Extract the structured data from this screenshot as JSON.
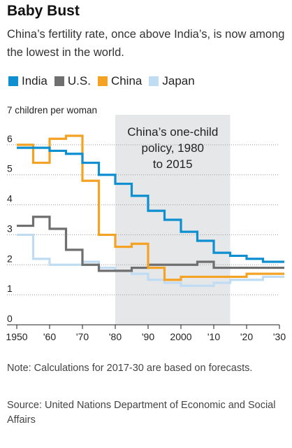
{
  "header": {
    "title": "Baby Bust",
    "subtitle": "China’s fertility rate, once above India’s, is now among the lowest in the world."
  },
  "notes": {
    "note": "Note: Calculations for 2017-30 are based on forecasts.",
    "source": "Source: United Nations Department of Economic and Social Affairs"
  },
  "chart_data": {
    "type": "line",
    "step": true,
    "ylabel": "7 children per woman",
    "ylim": [
      0,
      7
    ],
    "yticks": [
      0,
      1,
      2,
      3,
      4,
      5,
      6
    ],
    "xlim": [
      1950,
      2030
    ],
    "xticks": [
      1950,
      1960,
      1970,
      1980,
      1990,
      2000,
      2010,
      2020,
      2030
    ],
    "xtick_labels": [
      "1950",
      "'60",
      "'70",
      "'80",
      "'90",
      "2000",
      "'10",
      "'20",
      "'30"
    ],
    "grid": true,
    "legend_position": "top-left",
    "shaded_region": {
      "x": [
        1980,
        2015
      ],
      "label": [
        "China’s one-child",
        "policy, 1980",
        "to 2015"
      ]
    },
    "x": [
      1950,
      1955,
      1960,
      1965,
      1970,
      1975,
      1980,
      1985,
      1990,
      1995,
      2000,
      2005,
      2010,
      2015,
      2020,
      2025,
      2030
    ],
    "series": [
      {
        "name": "India",
        "color": "#0e8fd0",
        "values": [
          5.9,
          5.9,
          5.8,
          5.7,
          5.4,
          5.0,
          4.7,
          4.3,
          3.8,
          3.5,
          3.1,
          2.8,
          2.4,
          2.3,
          2.2,
          2.1,
          2.1
        ]
      },
      {
        "name": "U.S.",
        "color": "#6f6f6f",
        "values": [
          3.3,
          3.6,
          3.2,
          2.5,
          2.0,
          1.8,
          1.8,
          1.9,
          2.0,
          2.0,
          2.0,
          2.1,
          1.9,
          1.9,
          1.9,
          1.9,
          1.9
        ]
      },
      {
        "name": "China",
        "color": "#f3a224",
        "values": [
          6.0,
          5.4,
          6.2,
          6.3,
          4.8,
          3.0,
          2.6,
          2.7,
          1.9,
          1.5,
          1.6,
          1.6,
          1.6,
          1.6,
          1.7,
          1.7,
          1.7
        ]
      },
      {
        "name": "Japan",
        "color": "#bfdcf3",
        "values": [
          3.0,
          2.2,
          2.0,
          2.0,
          2.1,
          1.9,
          1.8,
          1.7,
          1.5,
          1.4,
          1.3,
          1.3,
          1.4,
          1.5,
          1.5,
          1.6,
          1.6
        ]
      }
    ]
  }
}
